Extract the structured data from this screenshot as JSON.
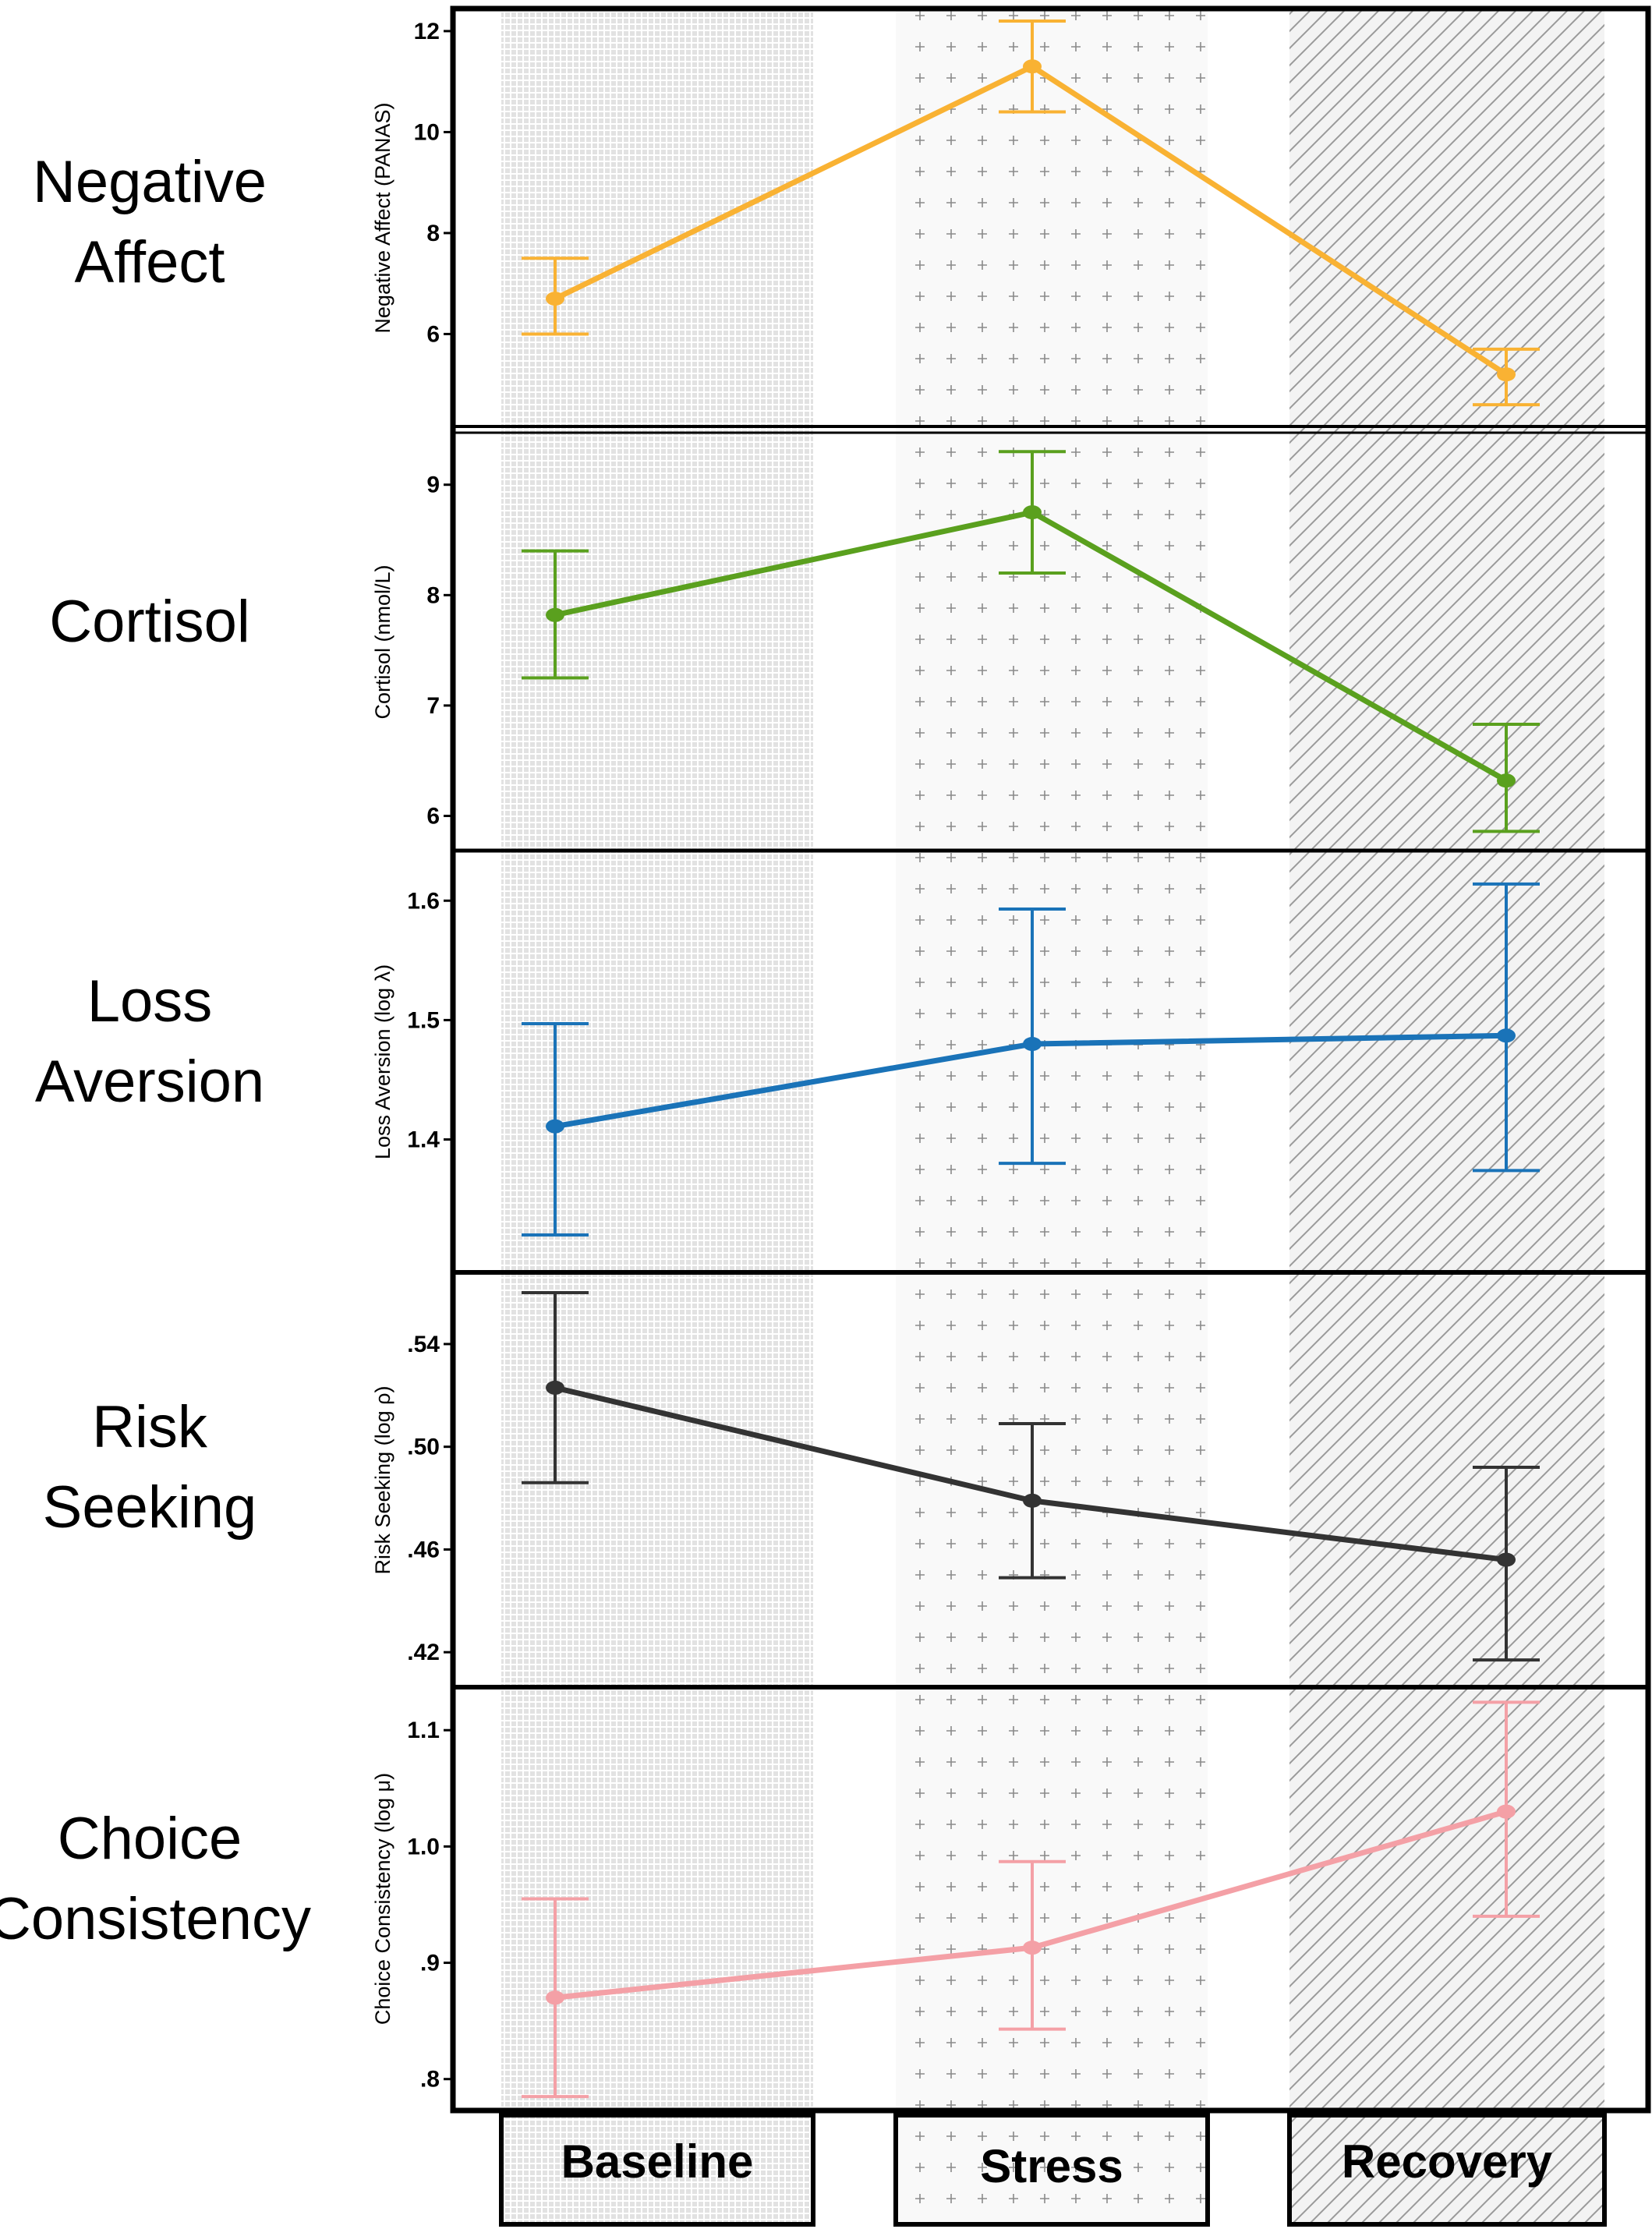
{
  "phases": [
    "Baseline",
    "Stress",
    "Recovery"
  ],
  "chart_data": [
    {
      "type": "line",
      "row_title": [
        "Negative",
        "Affect"
      ],
      "ylabel": "Negative Affect (PANAS)",
      "categories": [
        "Baseline",
        "Stress",
        "Recovery"
      ],
      "ylim": [
        4.2,
        12.4
      ],
      "ticks": [
        6,
        8,
        10,
        12
      ],
      "tick_labels": [
        "6",
        "8",
        "10",
        "12"
      ],
      "values": [
        6.7,
        11.3,
        5.2
      ],
      "lower": [
        6.0,
        10.4,
        4.6
      ],
      "upper": [
        7.5,
        12.2,
        5.7
      ],
      "color": "#F9B233"
    },
    {
      "type": "line",
      "row_title": [
        "Cortisol"
      ],
      "ylabel": "Cortisol (nmol/L)",
      "categories": [
        "Baseline",
        "Stress",
        "Recovery"
      ],
      "ylim": [
        5.7,
        9.45
      ],
      "ticks": [
        6,
        7,
        8,
        9
      ],
      "tick_labels": [
        "6",
        "7",
        "8",
        "9"
      ],
      "values": [
        7.82,
        8.75,
        6.32
      ],
      "lower": [
        7.25,
        8.2,
        5.86
      ],
      "upper": [
        8.4,
        9.3,
        6.83
      ],
      "color": "#5AA01E"
    },
    {
      "type": "line",
      "row_title": [
        "Loss",
        "Aversion"
      ],
      "ylabel": "Loss Aversion (log λ)",
      "categories": [
        "Baseline",
        "Stress",
        "Recovery"
      ],
      "ylim": [
        1.29,
        1.64
      ],
      "ticks": [
        1.4,
        1.5,
        1.6
      ],
      "tick_labels": [
        "1.4",
        "1.5",
        "1.6"
      ],
      "values": [
        1.411,
        1.48,
        1.487
      ],
      "lower": [
        1.32,
        1.38,
        1.374
      ],
      "upper": [
        1.497,
        1.593,
        1.614
      ],
      "color": "#1A73B8"
    },
    {
      "type": "line",
      "row_title": [
        "Risk",
        "Seeking"
      ],
      "ylabel": "Risk Seeking (log ρ)",
      "categories": [
        "Baseline",
        "Stress",
        "Recovery"
      ],
      "ylim": [
        0.407,
        0.567
      ],
      "ticks": [
        0.42,
        0.46,
        0.5,
        0.54
      ],
      "tick_labels": [
        ".42",
        ".46",
        ".50",
        ".54"
      ],
      "values": [
        0.523,
        0.479,
        0.456
      ],
      "lower": [
        0.486,
        0.449,
        0.417
      ],
      "upper": [
        0.56,
        0.509,
        0.492
      ],
      "color": "#333333"
    },
    {
      "type": "line",
      "row_title": [
        "Choice",
        "Consistency"
      ],
      "ylabel": "Choice Consistency (log μ)",
      "categories": [
        "Baseline",
        "Stress",
        "Recovery"
      ],
      "ylim": [
        0.775,
        1.135
      ],
      "ticks": [
        0.8,
        0.9,
        1.0,
        1.1
      ],
      "tick_labels": [
        ".8",
        ".9",
        "1.0",
        "1.1"
      ],
      "values": [
        0.87,
        0.913,
        1.03
      ],
      "lower": [
        0.785,
        0.843,
        0.94
      ],
      "upper": [
        0.955,
        0.987,
        1.124
      ],
      "color": "#F4A0A6"
    }
  ]
}
